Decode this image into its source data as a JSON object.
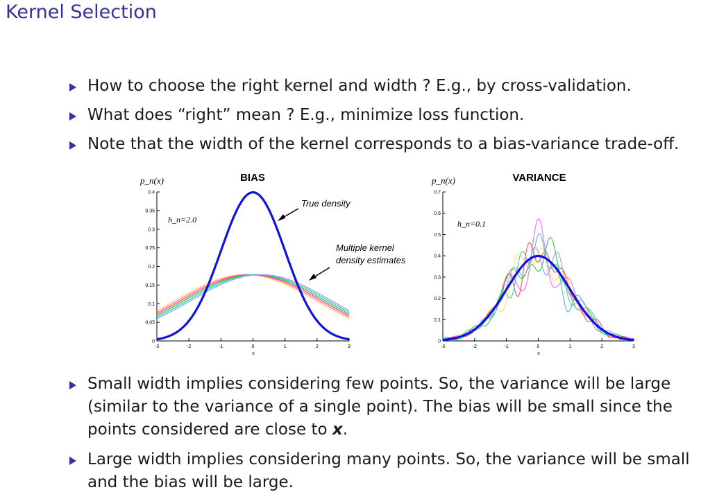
{
  "slide": {
    "title": "Kernel Selection",
    "accent_color": "#33339a",
    "bullets_top": [
      "How to choose the right kernel and width ? E.g., by cross-validation.",
      "What does “right” mean ? E.g., minimize loss function.",
      "Note that the width of the kernel corresponds to a bias-variance trade-off."
    ],
    "bullets_bottom": [
      {
        "text": "Small width implies considering few points. So, the variance will be large (similar to the variance of a single point). The bias will be small since the points considered are close to ",
        "emph": "x",
        "tail": "."
      },
      {
        "text": "Large width implies considering many points. So, the variance will be small and the bias will be large.",
        "emph": "",
        "tail": ""
      }
    ]
  },
  "chart_data": [
    {
      "type": "line",
      "title": "BIAS",
      "ylabel": "p_n(x)",
      "xlabel": "x",
      "xlim": [
        -3,
        3
      ],
      "ylim": [
        0,
        0.4
      ],
      "x_ticks": [
        -3,
        -2,
        -1,
        0,
        1,
        2,
        3
      ],
      "y_ticks": [
        0,
        0.05,
        0.1,
        0.15,
        0.2,
        0.25,
        0.3,
        0.35,
        0.4
      ],
      "annotations": [
        {
          "text": "True density"
        },
        {
          "text": "Multiple kernel"
        },
        {
          "text": "density estimates"
        },
        {
          "text": "h_n=2.0"
        }
      ],
      "true_density": {
        "mean": 0,
        "sd": 1,
        "color": "#1010e0"
      },
      "estimates": {
        "peak": 0.178,
        "sd": 2.2,
        "shifts": [
          -0.25,
          -0.15,
          -0.05,
          0.05,
          0.15,
          0.25
        ],
        "colors": [
          "#ffe24d",
          "#ff66ff",
          "#ff4d4d",
          "#33cc33",
          "#33cccc",
          "#9999ff"
        ]
      }
    },
    {
      "type": "line",
      "title": "VARIANCE",
      "ylabel": "p_n(x)",
      "xlabel": "x",
      "xlim": [
        -3,
        3
      ],
      "ylim": [
        0,
        0.7
      ],
      "x_ticks": [
        -3,
        -2,
        -1,
        0,
        1,
        2,
        3
      ],
      "y_ticks": [
        0,
        0.1,
        0.2,
        0.3,
        0.4,
        0.5,
        0.6,
        0.7
      ],
      "annotations": [
        {
          "text": "h_n=0.1"
        }
      ],
      "true_density": {
        "mean": 0,
        "sd": 1,
        "color": "#1010e0"
      },
      "estimates": {
        "colors": [
          "#ffe24d",
          "#ff66ff",
          "#ff4d4d",
          "#33cc33",
          "#33cccc",
          "#9999ff"
        ]
      }
    }
  ]
}
